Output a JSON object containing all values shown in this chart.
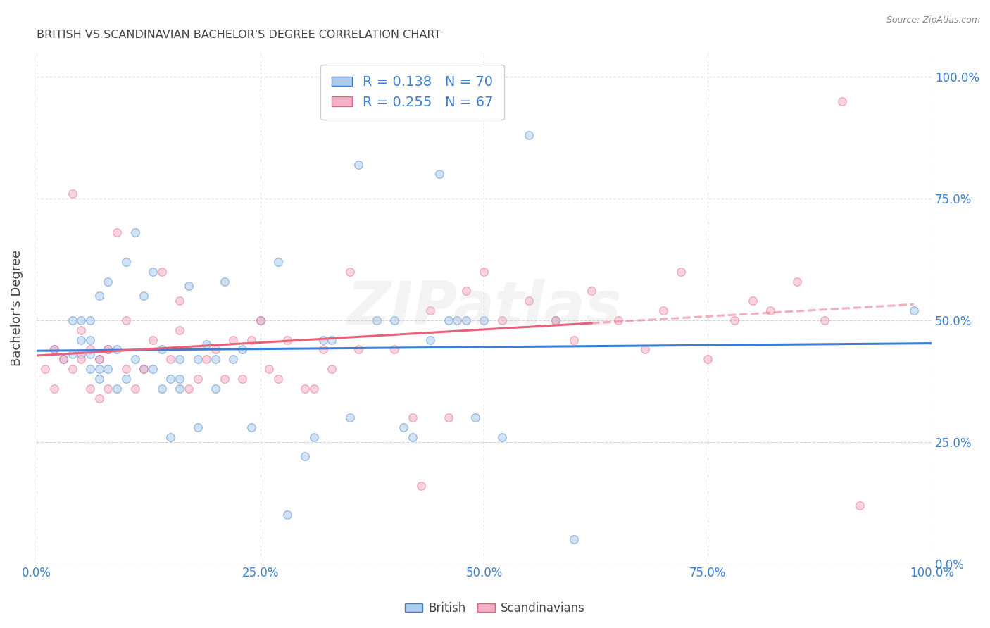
{
  "title": "BRITISH VS SCANDINAVIAN BACHELOR'S DEGREE CORRELATION CHART",
  "source": "Source: ZipAtlas.com",
  "ylabel": "Bachelor's Degree",
  "watermark": "ZIPatlas",
  "british_R": 0.138,
  "british_N": 70,
  "scandinavian_R": 0.255,
  "scandinavian_N": 67,
  "british_color": "#aecbee",
  "scandinavian_color": "#f5afc8",
  "british_line_color": "#3a7fd5",
  "scandinavian_line_color": "#e8607a",
  "legend_text_color": "#3a7fd5",
  "title_color": "#444444",
  "axis_tick_color": "#3a7fd5",
  "grid_color": "#c8c8c8",
  "background_color": "#ffffff",
  "british_x": [
    0.02,
    0.03,
    0.04,
    0.04,
    0.05,
    0.05,
    0.05,
    0.06,
    0.06,
    0.06,
    0.06,
    0.07,
    0.07,
    0.07,
    0.07,
    0.08,
    0.08,
    0.08,
    0.09,
    0.09,
    0.1,
    0.1,
    0.11,
    0.11,
    0.12,
    0.12,
    0.13,
    0.13,
    0.14,
    0.14,
    0.15,
    0.15,
    0.16,
    0.16,
    0.16,
    0.17,
    0.18,
    0.18,
    0.19,
    0.2,
    0.2,
    0.21,
    0.22,
    0.23,
    0.24,
    0.25,
    0.27,
    0.28,
    0.3,
    0.31,
    0.32,
    0.33,
    0.35,
    0.36,
    0.38,
    0.4,
    0.41,
    0.42,
    0.44,
    0.45,
    0.46,
    0.47,
    0.48,
    0.49,
    0.5,
    0.52,
    0.55,
    0.58,
    0.6,
    0.98
  ],
  "british_y": [
    0.44,
    0.42,
    0.43,
    0.5,
    0.43,
    0.46,
    0.5,
    0.4,
    0.43,
    0.46,
    0.5,
    0.38,
    0.4,
    0.42,
    0.55,
    0.4,
    0.44,
    0.58,
    0.36,
    0.44,
    0.38,
    0.62,
    0.42,
    0.68,
    0.4,
    0.55,
    0.4,
    0.6,
    0.36,
    0.44,
    0.26,
    0.38,
    0.36,
    0.38,
    0.42,
    0.57,
    0.28,
    0.42,
    0.45,
    0.36,
    0.42,
    0.58,
    0.42,
    0.44,
    0.28,
    0.5,
    0.62,
    0.1,
    0.22,
    0.26,
    0.46,
    0.46,
    0.3,
    0.82,
    0.5,
    0.5,
    0.28,
    0.26,
    0.46,
    0.8,
    0.5,
    0.5,
    0.5,
    0.3,
    0.5,
    0.26,
    0.88,
    0.5,
    0.05,
    0.52
  ],
  "scandinavian_x": [
    0.01,
    0.02,
    0.02,
    0.03,
    0.04,
    0.04,
    0.05,
    0.05,
    0.06,
    0.06,
    0.07,
    0.07,
    0.08,
    0.08,
    0.09,
    0.1,
    0.1,
    0.11,
    0.12,
    0.13,
    0.14,
    0.15,
    0.16,
    0.16,
    0.17,
    0.18,
    0.19,
    0.2,
    0.21,
    0.22,
    0.23,
    0.24,
    0.25,
    0.26,
    0.27,
    0.28,
    0.3,
    0.31,
    0.32,
    0.33,
    0.35,
    0.36,
    0.38,
    0.4,
    0.42,
    0.43,
    0.44,
    0.46,
    0.48,
    0.5,
    0.52,
    0.55,
    0.58,
    0.6,
    0.62,
    0.65,
    0.68,
    0.7,
    0.72,
    0.75,
    0.78,
    0.8,
    0.82,
    0.85,
    0.88,
    0.9,
    0.92
  ],
  "scandinavian_y": [
    0.4,
    0.36,
    0.44,
    0.42,
    0.4,
    0.76,
    0.42,
    0.48,
    0.36,
    0.44,
    0.34,
    0.42,
    0.36,
    0.44,
    0.68,
    0.4,
    0.5,
    0.36,
    0.4,
    0.46,
    0.6,
    0.42,
    0.48,
    0.54,
    0.36,
    0.38,
    0.42,
    0.44,
    0.38,
    0.46,
    0.38,
    0.46,
    0.5,
    0.4,
    0.38,
    0.46,
    0.36,
    0.36,
    0.44,
    0.4,
    0.6,
    0.44,
    0.92,
    0.44,
    0.3,
    0.16,
    0.52,
    0.3,
    0.56,
    0.6,
    0.5,
    0.54,
    0.5,
    0.46,
    0.56,
    0.5,
    0.44,
    0.52,
    0.6,
    0.42,
    0.5,
    0.54,
    0.52,
    0.58,
    0.5,
    0.95,
    0.12
  ],
  "xlim": [
    0.0,
    1.0
  ],
  "ylim": [
    0.0,
    1.05
  ],
  "xticks": [
    0.0,
    0.25,
    0.5,
    0.75,
    1.0
  ],
  "xtick_labels": [
    "0.0%",
    "25.0%",
    "50.0%",
    "75.0%",
    "100.0%"
  ],
  "yticks": [
    0.0,
    0.25,
    0.5,
    0.75,
    1.0
  ],
  "ytick_labels": [
    "0.0%",
    "25.0%",
    "50.0%",
    "75.0%",
    "100.0%"
  ],
  "marker_size": 70,
  "marker_alpha": 0.55,
  "line_width": 2.2
}
